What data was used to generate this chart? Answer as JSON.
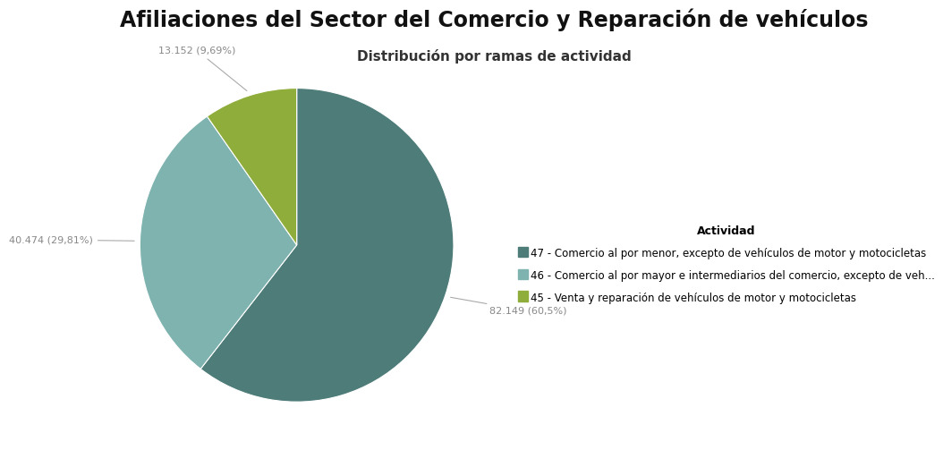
{
  "title": "Afiliaciones del Sector del Comercio y Reparación de vehículos",
  "subtitle": "Distribución por ramas de actividad",
  "legend_title": "Actividad",
  "slices": [
    {
      "label": "47 - Comercio al por menor, excepto de vehículos de motor y motocicletas",
      "value": 82149,
      "pct": 60.5,
      "color": "#4e7c79",
      "annot_text": "82.149 (60,5%)"
    },
    {
      "label": "46 - Comercio al por mayor e intermediarios del comercio, excepto de veh...",
      "value": 40474,
      "pct": 29.81,
      "color": "#7eb3af",
      "annot_text": "40.474 (29,81%)"
    },
    {
      "label": "45 - Venta y reparación de vehículos de motor y motocicletas",
      "value": 13152,
      "pct": 9.69,
      "color": "#8fad3a",
      "annot_text": "13.152 (9,69%)"
    }
  ],
  "background_color": "#ffffff",
  "title_fontsize": 17,
  "subtitle_fontsize": 11,
  "legend_fontsize": 8.5,
  "annot_fontsize": 8,
  "annot_color": "#888888",
  "line_color": "#aaaaaa",
  "startangle": 90
}
